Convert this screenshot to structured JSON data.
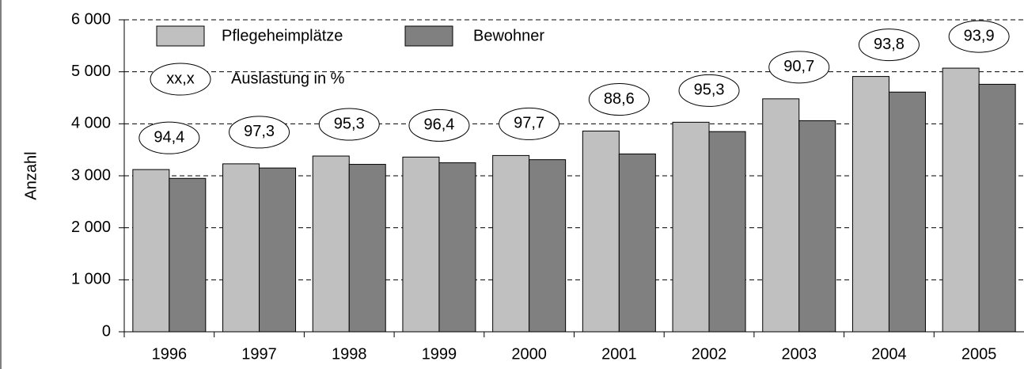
{
  "chart_data": {
    "type": "bar",
    "y_label": "Anzahl",
    "categories": [
      "1996",
      "1997",
      "1998",
      "1999",
      "2000",
      "2001",
      "2002",
      "2003",
      "2004",
      "2005"
    ],
    "series": [
      {
        "name": "Pflegeheimplätze",
        "color": "#c0c0c0",
        "values": [
          3120,
          3230,
          3380,
          3360,
          3390,
          3860,
          4030,
          4480,
          4910,
          5070
        ]
      },
      {
        "name": "Bewohner",
        "color": "#808080",
        "values": [
          2950,
          3150,
          3220,
          3250,
          3310,
          3420,
          3850,
          4060,
          4610,
          4760
        ]
      }
    ],
    "occupancy": {
      "name": "Auslastung in %",
      "legend_sample": "xx,x",
      "values": [
        94.4,
        97.3,
        95.3,
        96.4,
        97.7,
        88.6,
        95.3,
        90.7,
        93.8,
        93.9
      ],
      "value_labels": [
        "94,4",
        "97,3",
        "95,3",
        "96,4",
        "97,7",
        "88,6",
        "95,3",
        "90,7",
        "93,8",
        "93,9"
      ]
    },
    "ylim": [
      0,
      6000
    ],
    "yticks": [
      0,
      {
        "value": 1000,
        "label": "1 000"
      },
      {
        "value": 2000,
        "label": "2 000"
      },
      {
        "value": 3000,
        "label": "3 000"
      },
      {
        "value": 4000,
        "label": "4 000"
      },
      {
        "value": 5000,
        "label": "5 000"
      },
      {
        "value": 6000,
        "label": "6 000"
      }
    ],
    "grid": true
  }
}
